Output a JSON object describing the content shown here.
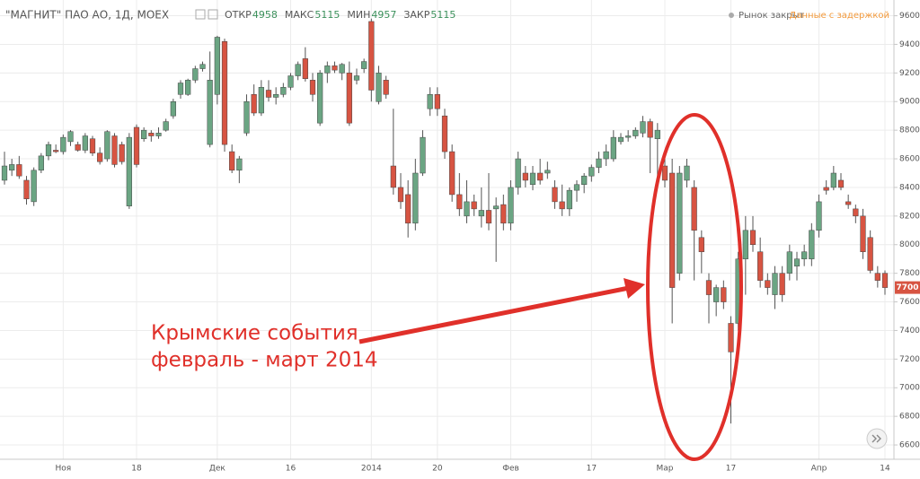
{
  "chart_data": {
    "type": "candlestick",
    "title": "\"МАГНИТ\" ПАО АО, 1Д, MOEX",
    "stats": [
      {
        "name": "ОТКР",
        "value": 4958
      },
      {
        "name": "МАКС",
        "value": 5115
      },
      {
        "name": "МИН",
        "value": 4957
      },
      {
        "name": "ЗАКР",
        "value": 5115
      }
    ],
    "status": "Рынок закрыт",
    "delay_note": "Данные с задержкой",
    "annotation": [
      "Крымские события",
      "февраль - март 2014"
    ],
    "up_color": "#6ba583",
    "down_color": "#d75442",
    "grid": true,
    "categories": [
      null,
      null,
      null,
      null,
      null,
      null,
      null,
      null,
      "Ноя",
      null,
      null,
      null,
      null,
      null,
      null,
      null,
      null,
      null,
      "18",
      null,
      null,
      null,
      null,
      null,
      null,
      null,
      null,
      null,
      null,
      "Дек",
      null,
      null,
      null,
      null,
      null,
      null,
      null,
      null,
      null,
      "16",
      null,
      null,
      null,
      null,
      null,
      null,
      null,
      null,
      null,
      null,
      "2014",
      null,
      null,
      null,
      null,
      null,
      null,
      null,
      null,
      "20",
      null,
      null,
      null,
      null,
      null,
      null,
      null,
      null,
      null,
      "Фев",
      null,
      null,
      null,
      null,
      null,
      null,
      null,
      null,
      null,
      null,
      "17",
      null,
      null,
      null,
      null,
      null,
      null,
      null,
      null,
      null,
      "Мар",
      null,
      null,
      null,
      null,
      null,
      null,
      null,
      null,
      "17",
      null,
      null,
      null,
      null,
      null,
      null,
      null,
      null,
      null,
      null,
      null,
      "Апр",
      null,
      null,
      null,
      null,
      null,
      null,
      null,
      null,
      "14"
    ],
    "open": [
      8450,
      8520,
      8560,
      8450,
      8300,
      8520,
      8620,
      8660,
      8650,
      8720,
      8700,
      8660,
      8740,
      8640,
      8600,
      8760,
      8700,
      8270,
      8820,
      8740,
      8780,
      8760,
      8800,
      8900,
      9050,
      9050,
      9150,
      9230,
      8700,
      9050,
      9420,
      8650,
      8520,
      8780,
      9050,
      8920,
      9080,
      9030,
      9050,
      9100,
      9180,
      9300,
      9150,
      8850,
      9200,
      9250,
      9200,
      9200,
      9150,
      9230,
      9560,
      9000,
      9150,
      8550,
      8400,
      8350,
      8150,
      8500,
      8950,
      9050,
      8900,
      8650,
      8350,
      8200,
      8300,
      8200,
      8240,
      8250,
      8280,
      8150,
      8400,
      8500,
      8420,
      8500,
      8500,
      8400,
      8300,
      8250,
      8380,
      8420,
      8480,
      8540,
      8600,
      8600,
      8720,
      8750,
      8760,
      8780,
      8860,
      8740,
      8550,
      8500,
      7800,
      8450,
      8400,
      8050,
      7750,
      7600,
      7700,
      7450,
      7450,
      7900,
      8100,
      7950,
      7750,
      7650,
      7800,
      7800,
      7850,
      7900,
      7900,
      8100,
      8400,
      8400,
      8450,
      8300,
      8250,
      8200,
      8050,
      7800,
      7800
    ],
    "high": [
      8650,
      8600,
      8620,
      8480,
      8540,
      8640,
      8720,
      8700,
      8770,
      8800,
      8720,
      8780,
      8760,
      8680,
      8800,
      8780,
      8720,
      8780,
      8840,
      8820,
      8800,
      8820,
      8880,
      9020,
      9150,
      9160,
      9250,
      9280,
      9350,
      9460,
      9440,
      8700,
      8620,
      9050,
      9120,
      9150,
      9150,
      9100,
      9130,
      9200,
      9280,
      9380,
      9200,
      9220,
      9280,
      9280,
      9270,
      9280,
      9230,
      9300,
      9580,
      9250,
      9180,
      8950,
      8500,
      8450,
      8600,
      8800,
      9100,
      9100,
      8950,
      8700,
      8500,
      8450,
      8350,
      8400,
      8500,
      8330,
      8350,
      8450,
      8650,
      8550,
      8550,
      8600,
      8580,
      8450,
      8420,
      8400,
      8450,
      8500,
      8560,
      8650,
      8700,
      8800,
      8780,
      8800,
      8820,
      8900,
      8880,
      8850,
      8600,
      8600,
      8550,
      8600,
      8450,
      8100,
      7800,
      7720,
      7750,
      7500,
      7950,
      8200,
      8200,
      8050,
      7800,
      7850,
      7850,
      8000,
      7950,
      8000,
      8150,
      8350,
      8450,
      8550,
      8500,
      8350,
      8280,
      8250,
      8100,
      7850,
      7820
    ],
    "low": [
      8420,
      8480,
      8460,
      8280,
      8270,
      8500,
      8590,
      8640,
      8630,
      8690,
      8650,
      8640,
      8620,
      8560,
      8580,
      8540,
      8560,
      8250,
      8540,
      8720,
      8720,
      8740,
      8790,
      8880,
      9020,
      9040,
      9130,
      9210,
      8680,
      8980,
      8650,
      8500,
      8430,
      8760,
      8900,
      8900,
      9000,
      8980,
      9030,
      9080,
      9150,
      9140,
      9000,
      8830,
      9130,
      9200,
      9150,
      8830,
      9120,
      9200,
      9000,
      8980,
      9020,
      8350,
      8250,
      8050,
      8100,
      8480,
      8900,
      8900,
      8600,
      8300,
      8200,
      8150,
      8200,
      8120,
      8100,
      7880,
      8100,
      8100,
      8350,
      8400,
      8380,
      8420,
      8460,
      8250,
      8200,
      8200,
      8300,
      8360,
      8440,
      8500,
      8550,
      8580,
      8700,
      8720,
      8740,
      8750,
      8500,
      8400,
      8400,
      7450,
      7750,
      8400,
      7750,
      7800,
      7450,
      7500,
      7550,
      6750,
      7400,
      7650,
      7950,
      7700,
      7650,
      7550,
      7600,
      7750,
      7750,
      7850,
      7850,
      8050,
      8350,
      8380,
      8380,
      8250,
      8150,
      7900,
      7800,
      7700,
      7650
    ],
    "close": [
      8550,
      8560,
      8480,
      8320,
      8520,
      8620,
      8700,
      8650,
      8750,
      8790,
      8660,
      8760,
      8640,
      8580,
      8790,
      8560,
      8580,
      8750,
      8560,
      8800,
      8760,
      8780,
      8860,
      9000,
      9130,
      9150,
      9230,
      9260,
      9150,
      9450,
      8700,
      8520,
      8600,
      9000,
      8920,
      9100,
      9030,
      9050,
      9100,
      9180,
      9260,
      9160,
      9050,
      9200,
      9250,
      9220,
      9260,
      8850,
      9180,
      9280,
      9080,
      9200,
      9050,
      8400,
      8300,
      8150,
      8500,
      8750,
      9050,
      8950,
      8650,
      8350,
      8250,
      8300,
      8250,
      8240,
      8150,
      8270,
      8150,
      8400,
      8600,
      8450,
      8500,
      8450,
      8520,
      8300,
      8250,
      8380,
      8420,
      8480,
      8540,
      8600,
      8650,
      8750,
      8750,
      8760,
      8800,
      8860,
      8750,
      8800,
      8450,
      7700,
      8500,
      8550,
      8100,
      7950,
      7650,
      7700,
      7600,
      7250,
      7900,
      8100,
      8000,
      7750,
      7700,
      7800,
      7650,
      7950,
      7900,
      7950,
      8100,
      8300,
      8380,
      8500,
      8400,
      8280,
      8200,
      7950,
      7820,
      7750,
      7700
    ],
    "ylim": [
      6500,
      9710
    ],
    "yticks": [
      6600,
      6800,
      7000,
      7200,
      7400,
      7600,
      7800,
      8000,
      8200,
      8400,
      8600,
      8800,
      9000,
      9200,
      9400,
      9600
    ]
  }
}
